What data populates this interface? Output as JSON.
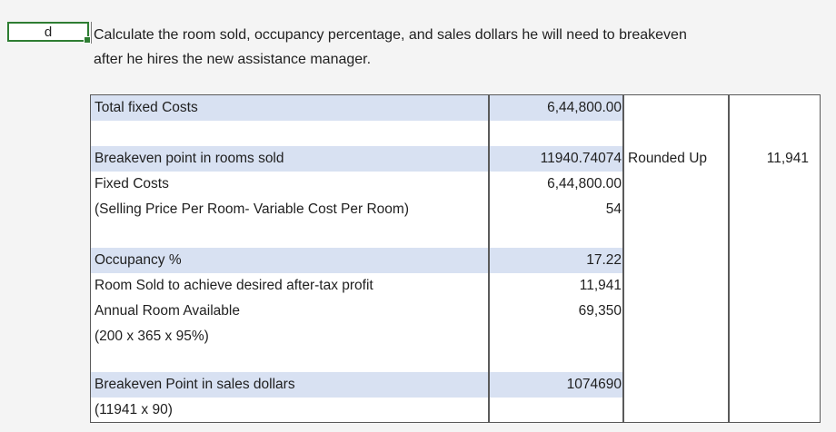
{
  "cell_marker": "d",
  "question": {
    "line1": "Calculate the room sold, occupancy percentage, and sales dollars he will need to breakeven",
    "line2": "after he hires the new assistance manager."
  },
  "table": {
    "total_fixed_costs": {
      "label": "Total fixed Costs",
      "value": "6,44,800.00"
    },
    "breakeven_rooms": {
      "label": "Breakeven point in rooms sold",
      "value": "11940.74074",
      "extra_label": "Rounded Up",
      "extra_value": "11,941"
    },
    "fixed_costs": {
      "label": "Fixed Costs",
      "value": "6,44,800.00"
    },
    "contribution": {
      "label": "(Selling Price Per Room- Variable Cost Per Room)",
      "value": "54"
    },
    "occupancy": {
      "label": "Occupancy %",
      "value": "17.22"
    },
    "rooms_sold_profit": {
      "label": "Room Sold to achieve desired after-tax profit",
      "value": "11,941"
    },
    "annual_rooms": {
      "label": "Annual Room Available",
      "value": "69,350"
    },
    "annual_formula": {
      "label": "(200 x 365 x 95%)"
    },
    "breakeven_sales": {
      "label": "Breakeven Point in sales dollars",
      "value": "1074690"
    },
    "sales_formula": {
      "label": "(11941 x 90)"
    }
  },
  "colors": {
    "band": "#d8e1f2",
    "selection": "#2e7d32",
    "border": "#5a5a5a"
  }
}
